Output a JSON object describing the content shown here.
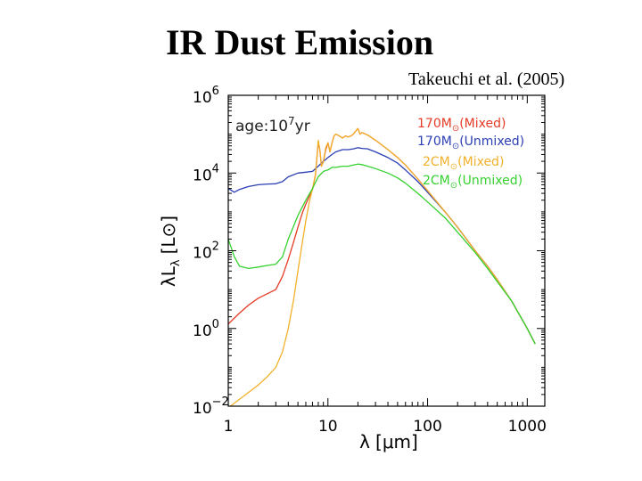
{
  "slide": {
    "title": "IR Dust Emission",
    "citation": "Takeuchi et al. (2005)"
  },
  "chart_data": {
    "type": "line",
    "xscale": "log",
    "yscale": "log",
    "xlim": [
      1,
      1500
    ],
    "ylim": [
      0.01,
      1000000
    ],
    "xlabel_main": "λ",
    "xlabel_unit": "[μm]",
    "ylabel_main": "λL",
    "ylabel_sub": "λ",
    "ylabel_unit": "[L",
    "ylabel_sun": "⊙",
    "ylabel_close": "]",
    "annotation_base": "age:10",
    "annotation_exp": "7",
    "annotation_unit": "yr",
    "x_ticks": [
      {
        "value": 1,
        "label": "1"
      },
      {
        "value": 10,
        "label": "10"
      },
      {
        "value": 100,
        "label": "100"
      },
      {
        "value": 1000,
        "label": "1000"
      }
    ],
    "y_ticks": [
      {
        "value": 1000000,
        "base": "10",
        "exp": "6"
      },
      {
        "value": 10000,
        "base": "10",
        "exp": "4"
      },
      {
        "value": 100,
        "base": "10",
        "exp": "2"
      },
      {
        "value": 1,
        "base": "10",
        "exp": "0"
      },
      {
        "value": 0.01,
        "base": "10",
        "exp": "−2"
      }
    ],
    "series": [
      {
        "name": "170M⊙(Mixed)",
        "label_mass": "170M",
        "label_sun": "⊙",
        "label_tail": "(Mixed)",
        "color": "#e53b25",
        "points": [
          [
            1,
            1.3
          ],
          [
            1.3,
            2.5
          ],
          [
            1.6,
            4
          ],
          [
            2,
            6
          ],
          [
            2.5,
            8
          ],
          [
            3,
            10
          ],
          [
            3.5,
            22
          ],
          [
            4,
            60
          ],
          [
            4.5,
            160
          ],
          [
            5,
            400
          ],
          [
            5.5,
            900
          ],
          [
            6,
            1600
          ],
          [
            6.5,
            2500
          ],
          [
            7,
            3800
          ],
          [
            7.5,
            9000
          ],
          [
            7.8,
            30000
          ],
          [
            8,
            60000
          ],
          [
            8.3,
            40000
          ],
          [
            8.6,
            15000
          ],
          [
            9,
            20000
          ],
          [
            9.5,
            40000
          ],
          [
            10,
            60000
          ],
          [
            10.5,
            35000
          ],
          [
            11,
            60000
          ],
          [
            11.5,
            90000
          ],
          [
            12,
            100000
          ],
          [
            13,
            90000
          ],
          [
            14,
            80000
          ],
          [
            15,
            90000
          ],
          [
            16,
            85000
          ],
          [
            17,
            90000
          ],
          [
            18,
            100000
          ],
          [
            19,
            120000
          ],
          [
            20,
            140000
          ],
          [
            21,
            100000
          ],
          [
            22,
            110000
          ],
          [
            25,
            95000
          ],
          [
            30,
            70000
          ],
          [
            40,
            40000
          ],
          [
            50,
            25000
          ],
          [
            60,
            16000
          ],
          [
            80,
            7000
          ],
          [
            100,
            3500
          ],
          [
            150,
            1000
          ],
          [
            200,
            400
          ],
          [
            300,
            100
          ],
          [
            400,
            40
          ],
          [
            500,
            18
          ],
          [
            700,
            5
          ],
          [
            1000,
            1
          ],
          [
            1200,
            0.4
          ]
        ]
      },
      {
        "name": "170M⊙(Unmixed)",
        "label_mass": "170M",
        "label_sun": "⊙",
        "label_tail": "(Unmixed)",
        "color": "#2b3fb3",
        "points": [
          [
            1,
            4000
          ],
          [
            1.15,
            3200
          ],
          [
            1.3,
            3800
          ],
          [
            1.6,
            4500
          ],
          [
            2,
            5000
          ],
          [
            2.5,
            5200
          ],
          [
            3,
            5300
          ],
          [
            3.5,
            6000
          ],
          [
            4,
            8000
          ],
          [
            5,
            10000
          ],
          [
            6,
            10500
          ],
          [
            7,
            11000
          ],
          [
            8,
            15000
          ],
          [
            9,
            20000
          ],
          [
            10,
            25000
          ],
          [
            11,
            30000
          ],
          [
            12,
            35000
          ],
          [
            14,
            40000
          ],
          [
            16,
            40000
          ],
          [
            18,
            42000
          ],
          [
            20,
            45000
          ],
          [
            22,
            43000
          ],
          [
            25,
            42000
          ],
          [
            30,
            35000
          ],
          [
            40,
            25000
          ],
          [
            50,
            18000
          ],
          [
            60,
            12000
          ],
          [
            80,
            6000
          ],
          [
            100,
            3200
          ],
          [
            150,
            1000
          ],
          [
            200,
            400
          ],
          [
            300,
            100
          ],
          [
            400,
            40
          ],
          [
            500,
            18
          ],
          [
            700,
            5
          ],
          [
            1000,
            1
          ],
          [
            1200,
            0.4
          ]
        ]
      },
      {
        "name": "2CM⊙(Mixed)",
        "label_mass": "2CM",
        "label_sun": "⊙",
        "label_tail": "(Mixed)",
        "color": "#f2b12b",
        "points": [
          [
            1,
            0.009
          ],
          [
            1.2,
            0.013
          ],
          [
            1.5,
            0.02
          ],
          [
            2,
            0.035
          ],
          [
            2.5,
            0.06
          ],
          [
            3,
            0.1
          ],
          [
            3.5,
            0.25
          ],
          [
            4,
            1
          ],
          [
            4.5,
            5
          ],
          [
            5,
            30
          ],
          [
            5.5,
            150
          ],
          [
            6,
            600
          ],
          [
            6.5,
            1800
          ],
          [
            7,
            4000
          ],
          [
            7.5,
            9000
          ],
          [
            7.8,
            30000
          ],
          [
            8,
            70000
          ],
          [
            8.3,
            40000
          ],
          [
            8.6,
            15000
          ],
          [
            9,
            20000
          ],
          [
            9.5,
            45000
          ],
          [
            10,
            60000
          ],
          [
            10.5,
            35000
          ],
          [
            11,
            60000
          ],
          [
            11.5,
            90000
          ],
          [
            12,
            100000
          ],
          [
            13,
            90000
          ],
          [
            14,
            80000
          ],
          [
            15,
            90000
          ],
          [
            16,
            85000
          ],
          [
            17,
            90000
          ],
          [
            18,
            100000
          ],
          [
            19,
            120000
          ],
          [
            20,
            140000
          ],
          [
            21,
            100000
          ],
          [
            22,
            110000
          ],
          [
            25,
            95000
          ],
          [
            30,
            70000
          ],
          [
            40,
            40000
          ],
          [
            50,
            25000
          ],
          [
            60,
            16000
          ],
          [
            80,
            7000
          ],
          [
            100,
            3500
          ],
          [
            150,
            1000
          ],
          [
            200,
            400
          ],
          [
            300,
            100
          ],
          [
            400,
            40
          ],
          [
            500,
            18
          ],
          [
            700,
            5
          ],
          [
            1000,
            1
          ],
          [
            1200,
            0.4
          ]
        ]
      },
      {
        "name": "2CM⊙(Unmixed)",
        "label_mass": "2CM",
        "label_sun": "⊙",
        "label_tail": "(Unmixed)",
        "color": "#35d12f",
        "points": [
          [
            1,
            200
          ],
          [
            1.15,
            70
          ],
          [
            1.3,
            40
          ],
          [
            1.6,
            35
          ],
          [
            2,
            38
          ],
          [
            2.5,
            42
          ],
          [
            3,
            45
          ],
          [
            3.5,
            70
          ],
          [
            4,
            200
          ],
          [
            5,
            800
          ],
          [
            6,
            2000
          ],
          [
            7,
            4000
          ],
          [
            8,
            8000
          ],
          [
            9,
            11000
          ],
          [
            10,
            12000
          ],
          [
            11,
            14000
          ],
          [
            12,
            14000
          ],
          [
            14,
            15000
          ],
          [
            16,
            15000
          ],
          [
            18,
            16000
          ],
          [
            20,
            17000
          ],
          [
            22,
            16500
          ],
          [
            25,
            15000
          ],
          [
            30,
            13000
          ],
          [
            40,
            10000
          ],
          [
            50,
            7500
          ],
          [
            60,
            5500
          ],
          [
            80,
            3000
          ],
          [
            100,
            1800
          ],
          [
            150,
            700
          ],
          [
            200,
            300
          ],
          [
            300,
            90
          ],
          [
            400,
            35
          ],
          [
            500,
            16
          ],
          [
            700,
            5
          ],
          [
            1000,
            1
          ],
          [
            1200,
            0.4
          ]
        ]
      }
    ]
  }
}
